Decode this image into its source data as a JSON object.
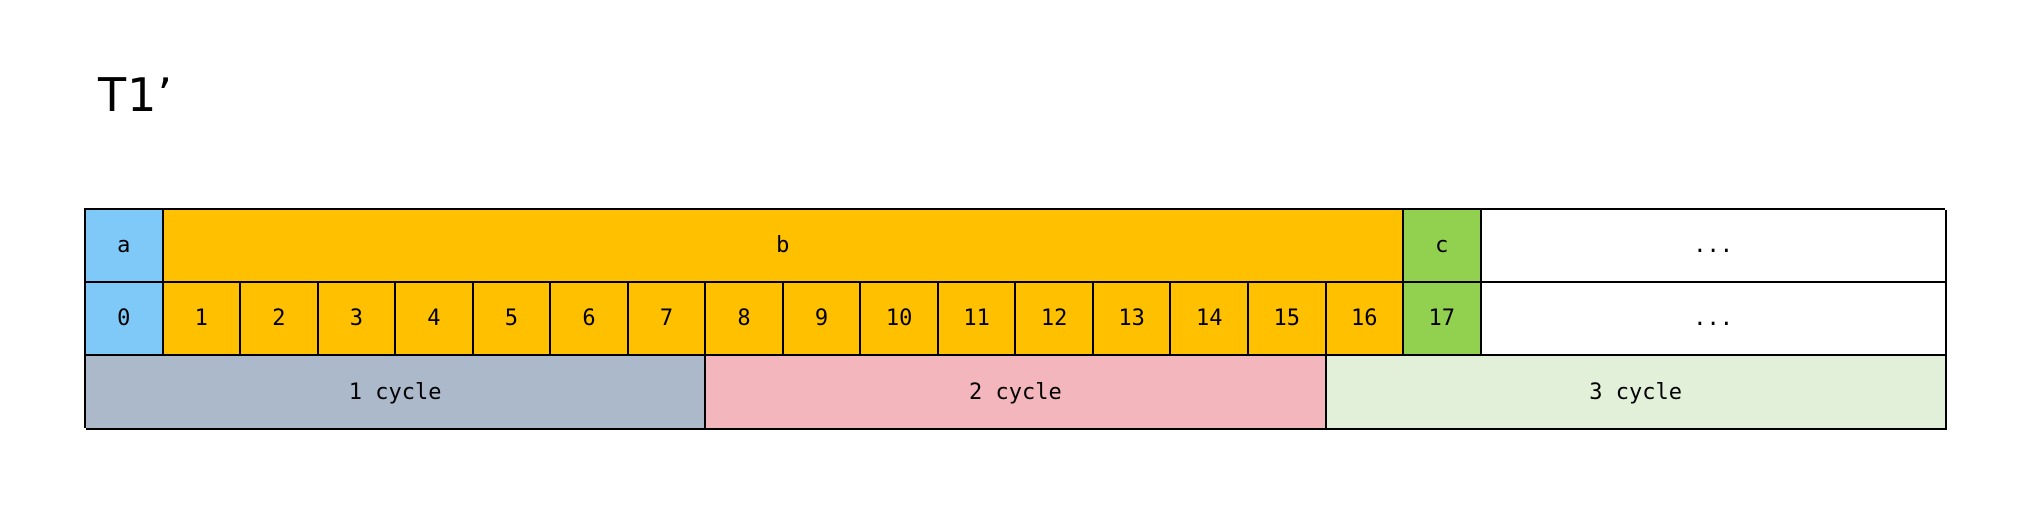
{
  "title": "T1’",
  "fields_row": {
    "a": "a",
    "b": "b",
    "c": "c",
    "rest": "..."
  },
  "index_row": [
    "0",
    "1",
    "2",
    "3",
    "4",
    "5",
    "6",
    "7",
    "8",
    "9",
    "10",
    "11",
    "12",
    "13",
    "14",
    "15",
    "16",
    "17"
  ],
  "index_rest": "...",
  "cycles": [
    "1 cycle",
    "2 cycle",
    "3 cycle"
  ],
  "colors": {
    "a": "#7ec9f7",
    "b": "#ffc000",
    "c": "#92d050",
    "cycle_1": "#acb9ca",
    "cycle_2": "#f4b6bd",
    "cycle_3": "#e2f0d9"
  }
}
